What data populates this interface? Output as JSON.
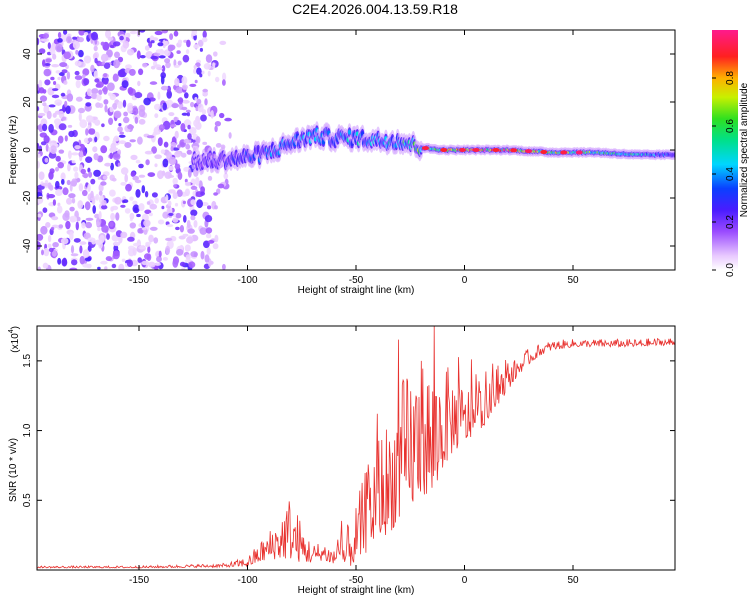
{
  "title": "C2E4.2026.004.13.59.R18",
  "chart_data": [
    {
      "type": "heatmap",
      "xlabel": "Height of straight line (km)",
      "ylabel": "Frequency (Hz)",
      "xlim": [
        -197,
        97
      ],
      "ylim": [
        -50,
        50
      ],
      "xticks": [
        -150,
        -100,
        -50,
        0,
        50
      ],
      "yticks": [
        -40,
        -20,
        0,
        20,
        40
      ],
      "colorbar": {
        "label": "Normalized spectral amplitude",
        "range": [
          0,
          1
        ],
        "ticks": [
          "0.0",
          "0.2",
          "0.4",
          "0.6",
          "0.8"
        ],
        "tick_values": [
          0,
          0.2,
          0.4,
          0.6,
          0.8
        ],
        "colormap": "rainbow (white-violet-blue-cyan-green-yellow-red-magenta)"
      },
      "noise_region_x": [
        -197,
        -105
      ],
      "ridge": {
        "x": [
          -125,
          -110,
          -100,
          -90,
          -80,
          -70,
          -60,
          -50,
          -40,
          -30,
          -20,
          -10,
          0,
          20,
          40,
          60,
          80,
          95
        ],
        "frequency": [
          -5,
          -4,
          -3,
          -1,
          3,
          6,
          5,
          5,
          4,
          4,
          1,
          0,
          0,
          0,
          -1,
          -1,
          -2,
          -2
        ],
        "amplitude": [
          0.15,
          0.25,
          0.3,
          0.35,
          0.35,
          0.4,
          0.35,
          0.45,
          0.4,
          0.5,
          0.6,
          0.75,
          0.85,
          0.9,
          0.7,
          0.6,
          0.5,
          0.3
        ]
      }
    },
    {
      "type": "line",
      "xlabel": "Height of straight line (km)",
      "ylabel": "SNR (10 * v/v)",
      "y_multiplier_label": "(x10",
      "y_multiplier_exp": "4",
      "y_multiplier_close": ")",
      "xlim": [
        -197,
        97
      ],
      "ylim": [
        0,
        1.75
      ],
      "xticks": [
        -150,
        -100,
        -50,
        0,
        50
      ],
      "yticks": [
        0.5,
        1.0,
        1.5
      ],
      "ytick_labels": [
        "0.5",
        "1.0",
        "1.5"
      ],
      "series": [
        {
          "name": "SNR",
          "color": "#e8322f",
          "x": [
            -197,
            -150,
            -110,
            -100,
            -90,
            -85,
            -80,
            -75,
            -70,
            -65,
            -60,
            -55,
            -50,
            -45,
            -40,
            -35,
            -30,
            -25,
            -20,
            -15,
            -10,
            -5,
            0,
            5,
            10,
            15,
            20,
            25,
            30,
            35,
            40,
            50,
            60,
            70,
            80,
            90,
            97
          ],
          "values": [
            0.02,
            0.02,
            0.03,
            0.05,
            0.15,
            0.2,
            0.25,
            0.15,
            0.1,
            0.12,
            0.08,
            0.1,
            0.2,
            0.35,
            0.5,
            0.55,
            0.7,
            0.8,
            0.9,
            0.85,
            1.0,
            1.05,
            1.05,
            1.1,
            1.15,
            1.25,
            1.35,
            1.45,
            1.52,
            1.57,
            1.6,
            1.62,
            1.62,
            1.62,
            1.62,
            1.63,
            1.63
          ],
          "noise_amplitude": [
            0.01,
            0.01,
            0.02,
            0.05,
            0.15,
            0.25,
            0.35,
            0.2,
            0.1,
            0.1,
            0.1,
            0.2,
            0.3,
            0.45,
            0.55,
            0.6,
            0.7,
            0.75,
            0.7,
            0.7,
            0.55,
            0.4,
            0.3,
            0.25,
            0.2,
            0.15,
            0.12,
            0.1,
            0.08,
            0.06,
            0.05,
            0.04,
            0.04,
            0.04,
            0.04,
            0.04,
            0.04
          ]
        }
      ]
    }
  ]
}
